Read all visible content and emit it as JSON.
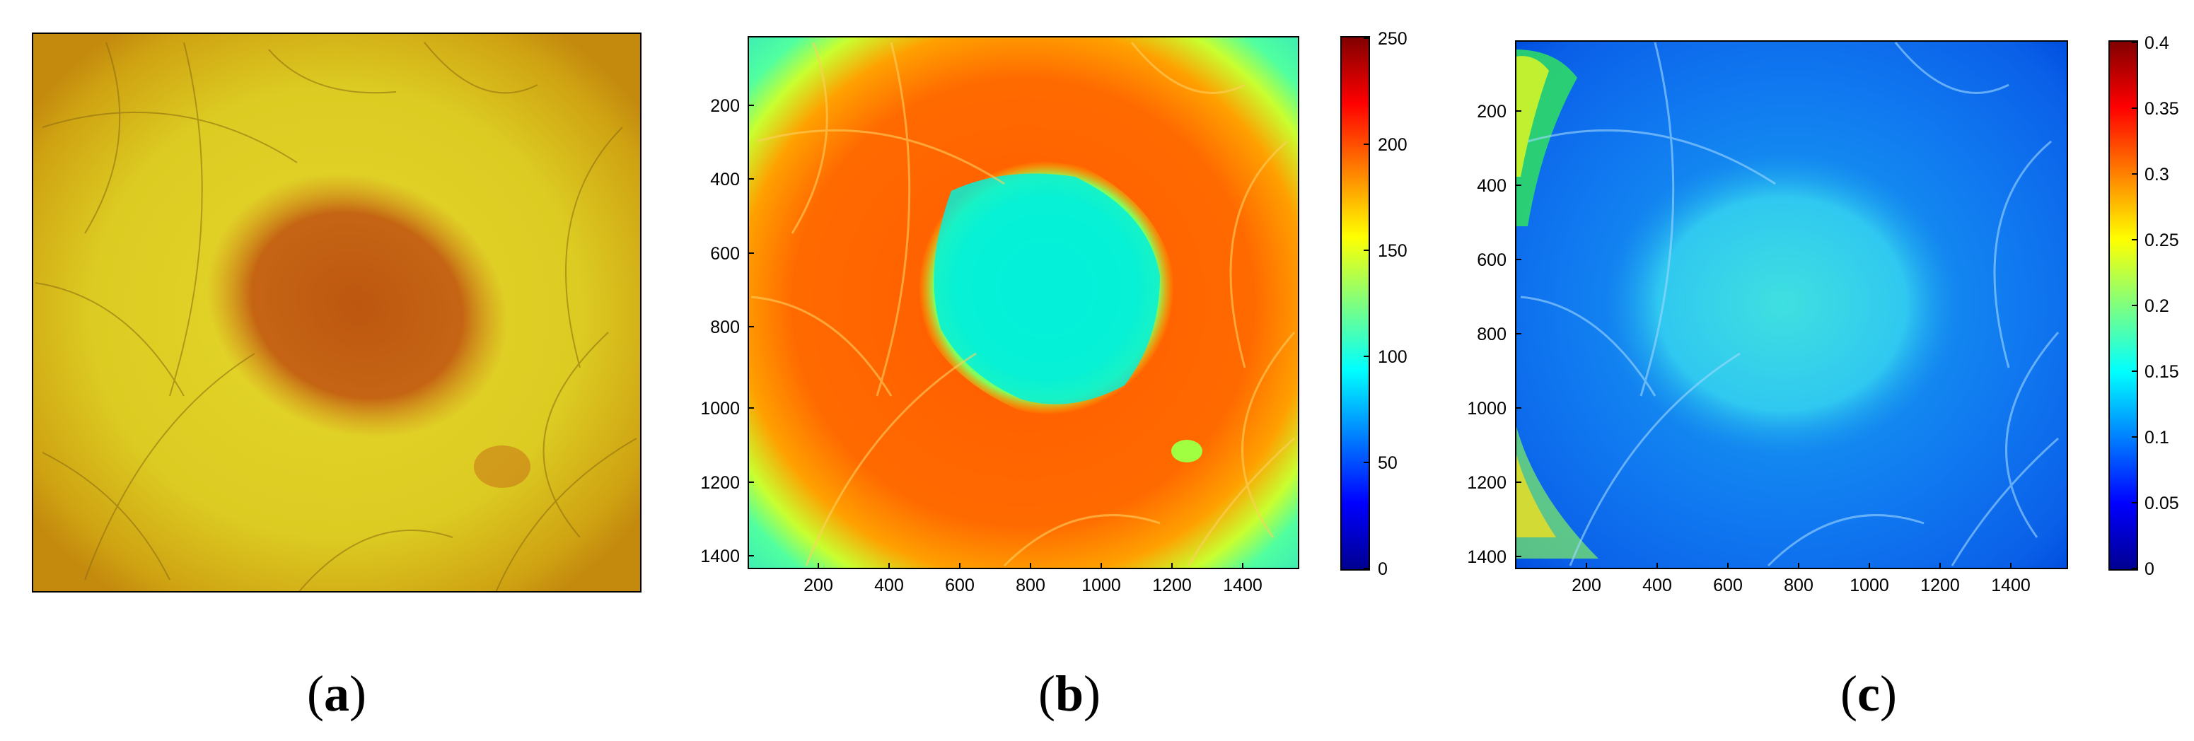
{
  "figure": {
    "panels": [
      {
        "id": "a",
        "label_open": "(",
        "label_letter": "a",
        "label_close": ")",
        "description": "Dermoscopic RGB photograph of pigmented skin lesion with hairs"
      },
      {
        "id": "b",
        "label_open": "(",
        "label_letter": "b",
        "label_close": ")"
      },
      {
        "id": "c",
        "label_open": "(",
        "label_letter": "c",
        "label_close": ")"
      }
    ]
  },
  "chart_data": [
    {
      "type": "heatmap",
      "panel": "b",
      "x_ticks": [
        "200",
        "400",
        "600",
        "800",
        "1000",
        "1200",
        "1400"
      ],
      "y_ticks": [
        "200",
        "400",
        "600",
        "800",
        "1000",
        "1200",
        "1400"
      ],
      "xlim": [
        0,
        1560
      ],
      "ylim": [
        0,
        1440
      ],
      "colorbar": {
        "ticks": [
          "0",
          "50",
          "100",
          "150",
          "200",
          "250"
        ],
        "range": [
          0,
          250
        ]
      }
    },
    {
      "type": "heatmap",
      "panel": "c",
      "x_ticks": [
        "200",
        "400",
        "600",
        "800",
        "1000",
        "1200",
        "1400"
      ],
      "y_ticks": [
        "200",
        "400",
        "600",
        "800",
        "1000",
        "1200",
        "1400"
      ],
      "xlim": [
        0,
        1560
      ],
      "ylim": [
        0,
        1440
      ],
      "colorbar": {
        "ticks": [
          "0",
          "0.05",
          "0.1",
          "0.15",
          "0.2",
          "0.25",
          "0.3",
          "0.35",
          "0.4"
        ],
        "range": [
          0,
          0.4
        ]
      }
    }
  ],
  "colors": {
    "jet_low": "#00008f",
    "jet_high": "#800000",
    "skin": "#d8c21a",
    "lesion": "#bf5a12"
  }
}
